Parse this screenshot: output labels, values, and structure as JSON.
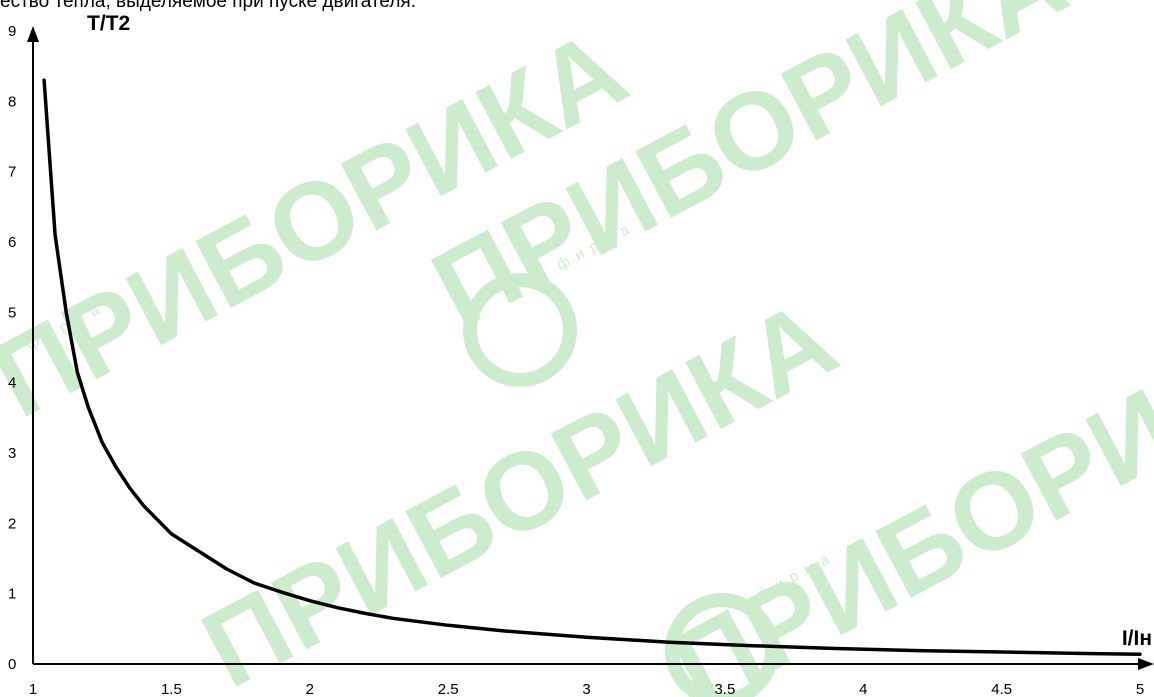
{
  "caption_fragment": "ество тепла, выделяемое при пуске двигателя.",
  "watermark": {
    "logo_text": "ПРИБОРИКА",
    "small_text": "фирма",
    "color": "#cdeccd"
  },
  "chart_data": {
    "type": "line",
    "title": "",
    "xlabel": "I/Iн",
    "ylabel": "T/T2",
    "xlim": [
      1,
      5
    ],
    "ylim": [
      0,
      9
    ],
    "x_ticks": [
      "1",
      "1.5",
      "2",
      "2.5",
      "3",
      "3.5",
      "4",
      "4.5",
      "5"
    ],
    "y_ticks": [
      "0",
      "1",
      "2",
      "3",
      "4",
      "5",
      "6",
      "7",
      "8",
      "9"
    ],
    "grid": false,
    "legend": "none",
    "series": [
      {
        "color": "#000000",
        "x": [
          1.04,
          1.08,
          1.12,
          1.16,
          1.2,
          1.25,
          1.3,
          1.35,
          1.4,
          1.45,
          1.5,
          1.6,
          1.7,
          1.8,
          1.9,
          2.0,
          2.1,
          2.2,
          2.3,
          2.4,
          2.5,
          2.7,
          3.0,
          3.3,
          3.6,
          3.9,
          4.2,
          4.5,
          4.8,
          5.0
        ],
        "y": [
          8.3,
          6.1,
          5.0,
          4.15,
          3.65,
          3.15,
          2.8,
          2.5,
          2.25,
          2.05,
          1.85,
          1.6,
          1.35,
          1.15,
          1.02,
          0.9,
          0.8,
          0.72,
          0.65,
          0.6,
          0.55,
          0.47,
          0.38,
          0.31,
          0.26,
          0.22,
          0.19,
          0.17,
          0.15,
          0.14
        ]
      }
    ]
  }
}
